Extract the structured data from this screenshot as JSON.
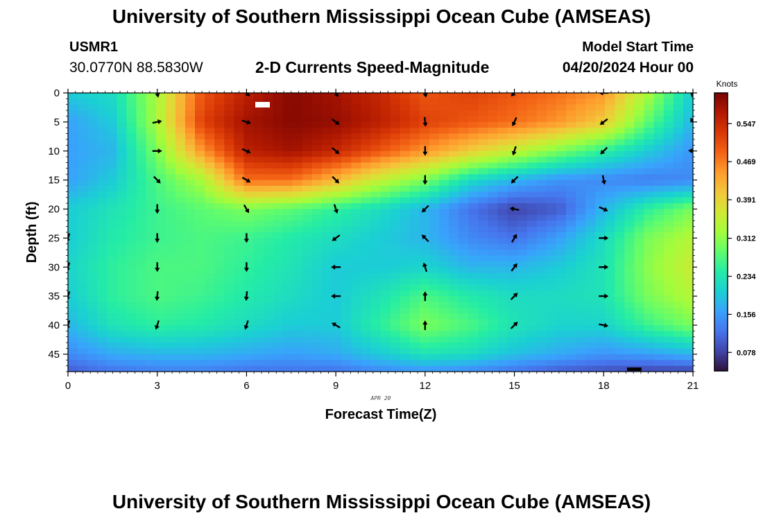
{
  "header": {
    "title": "University of Southern Mississippi Ocean Cube (AMSEAS)",
    "station_id": "USMR1",
    "coords": "30.0770N  88.5830W",
    "plot_title": "2-D Currents Speed-Magnitude",
    "model_start_label": "Model Start Time",
    "model_start_value": "04/20/2024 Hour 00"
  },
  "footer": {
    "title": "University of Southern Mississippi Ocean Cube (AMSEAS)"
  },
  "chart_data": {
    "type": "heatmap",
    "title": "2-D Currents Speed-Magnitude",
    "xlabel": "Forecast Time(Z)",
    "ylabel": "Depth (ft)",
    "date_label": "APR 20",
    "colorbar_label": "Knots",
    "xlim": [
      0,
      21
    ],
    "ylim": [
      0,
      48
    ],
    "y_inverted": true,
    "x_ticks": [
      0,
      3,
      6,
      9,
      12,
      15,
      18,
      21
    ],
    "y_ticks": [
      0,
      5,
      10,
      15,
      20,
      25,
      30,
      35,
      40,
      45
    ],
    "colorbar_ticks": [
      0.078,
      0.156,
      0.234,
      0.312,
      0.391,
      0.469,
      0.547
    ],
    "colorbar_range": [
      0.04,
      0.61
    ],
    "colorscale": [
      "#30123b",
      "#4145ab",
      "#4675ed",
      "#39a2fc",
      "#1bcfd4",
      "#24eca6",
      "#61fc6c",
      "#a4fc3b",
      "#d1e834",
      "#f3c63a",
      "#fe9b2d",
      "#f36315",
      "#d93806",
      "#b11901",
      "#7a0403"
    ],
    "grid_x": [
      0,
      1.5,
      3,
      4.5,
      6,
      7.5,
      9,
      10.5,
      12,
      13.5,
      15,
      16.5,
      18,
      19.5,
      21
    ],
    "grid_depth": [
      0,
      5,
      10,
      15,
      20,
      25,
      30,
      35,
      40,
      45,
      48
    ],
    "speed_knots": [
      [
        0.2,
        0.22,
        0.33,
        0.5,
        0.56,
        0.6,
        0.58,
        0.55,
        0.5,
        0.52,
        0.5,
        0.48,
        0.45,
        0.33,
        0.2
      ],
      [
        0.16,
        0.2,
        0.33,
        0.52,
        0.58,
        0.6,
        0.59,
        0.56,
        0.52,
        0.5,
        0.48,
        0.45,
        0.4,
        0.28,
        0.18
      ],
      [
        0.16,
        0.18,
        0.3,
        0.45,
        0.56,
        0.58,
        0.55,
        0.5,
        0.45,
        0.4,
        0.35,
        0.3,
        0.25,
        0.2,
        0.15
      ],
      [
        0.16,
        0.2,
        0.27,
        0.33,
        0.48,
        0.48,
        0.42,
        0.35,
        0.3,
        0.22,
        0.18,
        0.15,
        0.14,
        0.13,
        0.14
      ],
      [
        0.2,
        0.23,
        0.26,
        0.28,
        0.3,
        0.28,
        0.25,
        0.22,
        0.18,
        0.12,
        0.08,
        0.1,
        0.18,
        0.25,
        0.3
      ],
      [
        0.2,
        0.24,
        0.26,
        0.27,
        0.26,
        0.24,
        0.22,
        0.2,
        0.18,
        0.14,
        0.12,
        0.16,
        0.22,
        0.3,
        0.34
      ],
      [
        0.21,
        0.25,
        0.27,
        0.27,
        0.25,
        0.23,
        0.2,
        0.2,
        0.21,
        0.18,
        0.18,
        0.2,
        0.23,
        0.31,
        0.36
      ],
      [
        0.2,
        0.25,
        0.27,
        0.26,
        0.24,
        0.22,
        0.2,
        0.23,
        0.27,
        0.24,
        0.22,
        0.22,
        0.23,
        0.3,
        0.34
      ],
      [
        0.18,
        0.23,
        0.25,
        0.24,
        0.22,
        0.2,
        0.2,
        0.25,
        0.3,
        0.27,
        0.23,
        0.21,
        0.21,
        0.26,
        0.3
      ],
      [
        0.14,
        0.17,
        0.18,
        0.18,
        0.17,
        0.16,
        0.17,
        0.2,
        0.23,
        0.22,
        0.19,
        0.17,
        0.15,
        0.16,
        0.18
      ],
      [
        0.1,
        0.12,
        0.13,
        0.13,
        0.12,
        0.12,
        0.12,
        0.14,
        0.15,
        0.14,
        0.12,
        0.1,
        0.09,
        0.08,
        0.08
      ]
    ],
    "vectors": [
      {
        "t": 3,
        "d": 0,
        "u": 0.2,
        "v": -1
      },
      {
        "t": 3,
        "d": 5,
        "u": 1,
        "v": 0.2
      },
      {
        "t": 3,
        "d": 10,
        "u": 1,
        "v": 0
      },
      {
        "t": 3,
        "d": 15,
        "u": 0.7,
        "v": -0.7
      },
      {
        "t": 3,
        "d": 20,
        "u": 0,
        "v": -1
      },
      {
        "t": 3,
        "d": 25,
        "u": 0,
        "v": -1
      },
      {
        "t": 3,
        "d": 30,
        "u": 0,
        "v": -1
      },
      {
        "t": 3,
        "d": 35,
        "u": -0.1,
        "v": -1
      },
      {
        "t": 3,
        "d": 40,
        "u": -0.3,
        "v": -0.95
      },
      {
        "t": 6,
        "d": 0,
        "u": 0.7,
        "v": -0.7
      },
      {
        "t": 6,
        "d": 5,
        "u": 0.95,
        "v": -0.3
      },
      {
        "t": 6,
        "d": 10,
        "u": 0.9,
        "v": -0.4
      },
      {
        "t": 6,
        "d": 15,
        "u": 0.85,
        "v": -0.5
      },
      {
        "t": 6,
        "d": 20,
        "u": 0.5,
        "v": -0.85
      },
      {
        "t": 6,
        "d": 25,
        "u": 0,
        "v": -1
      },
      {
        "t": 6,
        "d": 30,
        "u": 0,
        "v": -1
      },
      {
        "t": 6,
        "d": 35,
        "u": -0.1,
        "v": -1
      },
      {
        "t": 6,
        "d": 40,
        "u": -0.3,
        "v": -0.95
      },
      {
        "t": 9,
        "d": 0,
        "u": 0.5,
        "v": -0.85
      },
      {
        "t": 9,
        "d": 5,
        "u": 0.8,
        "v": -0.6
      },
      {
        "t": 9,
        "d": 10,
        "u": 0.75,
        "v": -0.65
      },
      {
        "t": 9,
        "d": 15,
        "u": 0.7,
        "v": -0.7
      },
      {
        "t": 9,
        "d": 20,
        "u": 0.3,
        "v": -0.95
      },
      {
        "t": 9,
        "d": 25,
        "u": -0.8,
        "v": -0.6
      },
      {
        "t": 9,
        "d": 30,
        "u": -1,
        "v": 0
      },
      {
        "t": 9,
        "d": 35,
        "u": -1,
        "v": 0
      },
      {
        "t": 9,
        "d": 40,
        "u": -0.85,
        "v": 0.5
      },
      {
        "t": 12,
        "d": 0,
        "u": 0.2,
        "v": -1
      },
      {
        "t": 12,
        "d": 5,
        "u": 0.1,
        "v": -1
      },
      {
        "t": 12,
        "d": 10,
        "u": 0,
        "v": -1
      },
      {
        "t": 12,
        "d": 15,
        "u": 0,
        "v": -1
      },
      {
        "t": 12,
        "d": 20,
        "u": -0.7,
        "v": -0.7
      },
      {
        "t": 12,
        "d": 25,
        "u": -0.7,
        "v": 0.7
      },
      {
        "t": 12,
        "d": 30,
        "u": -0.3,
        "v": 0.95
      },
      {
        "t": 12,
        "d": 35,
        "u": 0,
        "v": 1
      },
      {
        "t": 12,
        "d": 40,
        "u": 0,
        "v": 1
      },
      {
        "t": 15,
        "d": 0,
        "u": -0.7,
        "v": -0.7
      },
      {
        "t": 15,
        "d": 5,
        "u": -0.4,
        "v": -0.9
      },
      {
        "t": 15,
        "d": 10,
        "u": -0.3,
        "v": -0.95
      },
      {
        "t": 15,
        "d": 15,
        "u": -0.7,
        "v": -0.7
      },
      {
        "t": 15,
        "d": 20,
        "u": -1,
        "v": 0.2
      },
      {
        "t": 15,
        "d": 25,
        "u": 0.5,
        "v": 0.85
      },
      {
        "t": 15,
        "d": 30,
        "u": 0.6,
        "v": 0.8
      },
      {
        "t": 15,
        "d": 35,
        "u": 0.7,
        "v": 0.7
      },
      {
        "t": 15,
        "d": 40,
        "u": 0.7,
        "v": 0.7
      },
      {
        "t": 18,
        "d": 0,
        "u": -1,
        "v": 0
      },
      {
        "t": 18,
        "d": 5,
        "u": -0.8,
        "v": -0.6
      },
      {
        "t": 18,
        "d": 10,
        "u": -0.7,
        "v": -0.7
      },
      {
        "t": 18,
        "d": 15,
        "u": 0.2,
        "v": -1
      },
      {
        "t": 18,
        "d": 20,
        "u": 0.9,
        "v": -0.4
      },
      {
        "t": 18,
        "d": 25,
        "u": 1,
        "v": 0
      },
      {
        "t": 18,
        "d": 30,
        "u": 1,
        "v": 0
      },
      {
        "t": 18,
        "d": 35,
        "u": 1,
        "v": 0
      },
      {
        "t": 18,
        "d": 40,
        "u": 1,
        "v": -0.2
      },
      {
        "t": 21,
        "d": 0,
        "u": -0.2,
        "v": -1
      },
      {
        "t": 21,
        "d": 5,
        "u": -0.5,
        "v": 0.85
      },
      {
        "t": 21,
        "d": 10,
        "u": -1,
        "v": 0.1
      },
      {
        "t": 0,
        "d": 25,
        "u": -0.3,
        "v": -0.95
      },
      {
        "t": 0,
        "d": 30,
        "u": -0.3,
        "v": -0.95
      },
      {
        "t": 0,
        "d": 35,
        "u": -0.3,
        "v": -0.95
      },
      {
        "t": 0,
        "d": 40,
        "u": -0.3,
        "v": -0.95
      }
    ]
  }
}
